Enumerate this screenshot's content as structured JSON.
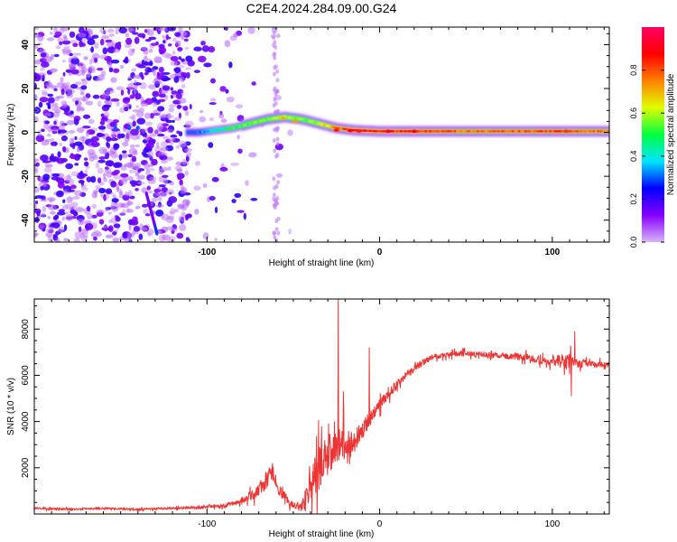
{
  "title": "C2E4.2024.284.09.00.G24",
  "chart_data": [
    {
      "type": "heatmap",
      "name": "spectrogram",
      "xlabel": "Height of straight line (km)",
      "ylabel": "Frequency (Hz)",
      "xlim": [
        -200,
        133
      ],
      "ylim": [
        -50,
        48
      ],
      "x_ticks": [
        -100,
        0,
        100
      ],
      "x_tick_labels": [
        "-100",
        "0",
        "100"
      ],
      "y_ticks": [
        -40,
        -20,
        0,
        20,
        40
      ],
      "y_tick_labels": [
        "-40",
        "-20",
        "0",
        "20",
        "40"
      ],
      "ridge": {
        "x": [
          -105,
          -95,
          -85,
          -75,
          -65,
          -55,
          -45,
          -35,
          -25,
          -15,
          0,
          20,
          50,
          100,
          133
        ],
        "y": [
          0,
          1,
          2,
          4,
          6,
          7,
          6,
          4,
          2,
          1,
          0.5,
          0.5,
          0.5,
          0.5,
          0.5
        ],
        "amplitude": [
          0.3,
          0.4,
          0.5,
          0.55,
          0.55,
          0.6,
          0.55,
          0.6,
          0.75,
          0.85,
          0.85,
          0.85,
          0.75,
          0.8,
          0.75
        ]
      },
      "colorbar": {
        "label": "Normalized spectral amplitude",
        "range": [
          0,
          1
        ],
        "ticks": [
          0.0,
          0.2,
          0.4,
          0.6,
          0.8
        ],
        "tick_labels": [
          "0.0",
          "0.2",
          "0.4",
          "0.6",
          "0.8"
        ],
        "colormap": [
          "#d8b4f8",
          "#8800ff",
          "#0000ff",
          "#00e5ff",
          "#00ff40",
          "#e0ff00",
          "#ff8000",
          "#ff0000",
          "#ff0066"
        ]
      }
    },
    {
      "type": "line",
      "name": "snr",
      "xlabel": "Height of straight line (km)",
      "ylabel": "SNR (10 * v/v)",
      "xlim": [
        -200,
        133
      ],
      "ylim": [
        0,
        9300
      ],
      "x_ticks": [
        -100,
        0,
        100
      ],
      "x_tick_labels": [
        "-100",
        "0",
        "100"
      ],
      "y_ticks": [
        2000,
        4000,
        6000,
        8000
      ],
      "y_tick_labels": [
        "2000",
        "4000",
        "6000",
        "8000"
      ],
      "color": "#ee3333",
      "series": [
        {
          "name": "SNR",
          "x": [
            -200,
            -180,
            -160,
            -140,
            -120,
            -100,
            -90,
            -80,
            -72,
            -66,
            -62,
            -58,
            -54,
            -50,
            -46,
            -42,
            -38,
            -34,
            -30,
            -26,
            -24,
            -22,
            -18,
            -14,
            -10,
            -6,
            -2,
            2,
            6,
            10,
            14,
            20,
            30,
            40,
            50,
            60,
            70,
            80,
            90,
            100,
            108,
            113,
            120,
            133
          ],
          "y": [
            250,
            200,
            250,
            200,
            250,
            300,
            350,
            550,
            900,
            1400,
            1800,
            1000,
            600,
            400,
            300,
            800,
            1500,
            2200,
            2500,
            2800,
            3100,
            3000,
            3000,
            3200,
            3600,
            4100,
            4500,
            4900,
            5300,
            5600,
            5900,
            6300,
            6800,
            6900,
            6950,
            6900,
            6850,
            6800,
            6700,
            6600,
            6650,
            6500,
            6500,
            6450
          ],
          "noise": [
            40,
            40,
            40,
            40,
            50,
            60,
            80,
            120,
            250,
            400,
            350,
            250,
            200,
            150,
            150,
            500,
            900,
            1000,
            900,
            800,
            800,
            700,
            600,
            500,
            400,
            350,
            300,
            250,
            250,
            200,
            180,
            150,
            120,
            120,
            120,
            120,
            120,
            150,
            180,
            200,
            400,
            250,
            150,
            120
          ]
        }
      ],
      "spikes": [
        {
          "x": -62,
          "y": 2200
        },
        {
          "x": -24,
          "y": 9300
        },
        {
          "x": -21,
          "y": 5300
        },
        {
          "x": -6,
          "y": 7200
        },
        {
          "x": 113,
          "y": 7900
        },
        {
          "x": 111,
          "y": 5100
        }
      ]
    }
  ]
}
